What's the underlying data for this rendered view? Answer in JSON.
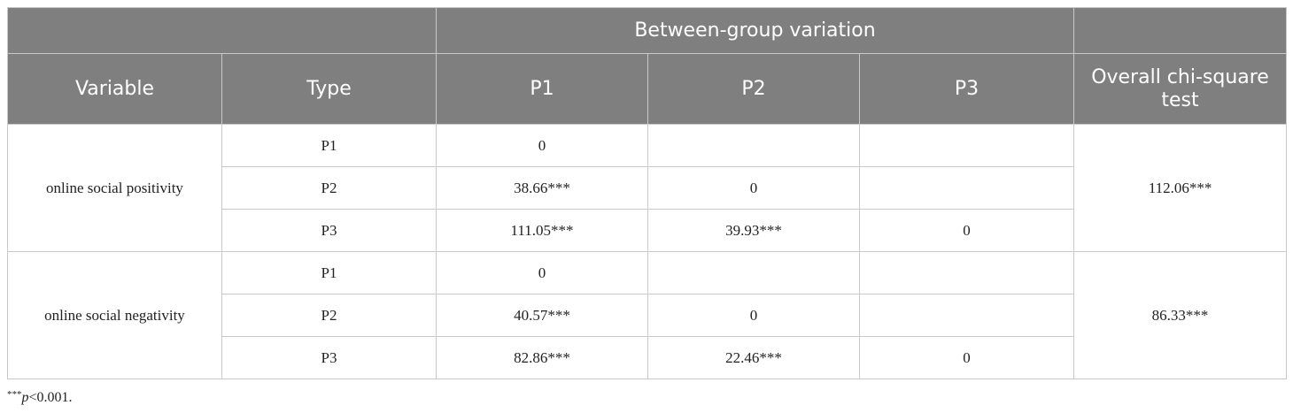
{
  "table": {
    "header": {
      "group": "Between-group variation",
      "columns": [
        "Variable",
        "Type",
        "P1",
        "P2",
        "P3",
        "Overall chi-square test"
      ]
    },
    "groups": [
      {
        "variable": "online social positivity",
        "overall": "112.06***",
        "rows": [
          {
            "type": "P1",
            "p1": "0"
          },
          {
            "type": "P2",
            "p1": "38.66***",
            "p2": "0"
          },
          {
            "type": "P3",
            "p1": "111.05***",
            "p2": "39.93***",
            "p3": "0"
          }
        ]
      },
      {
        "variable": "online social negativity",
        "overall": "86.33***",
        "rows": [
          {
            "type": "P1",
            "p1": "0"
          },
          {
            "type": "P2",
            "p1": "40.57***",
            "p2": "0"
          },
          {
            "type": "P3",
            "p1": "82.86***",
            "p2": "22.46***",
            "p3": "0"
          }
        ]
      }
    ]
  },
  "footnote": {
    "stars": "***",
    "symbol": "p",
    "text": "<0.001."
  }
}
